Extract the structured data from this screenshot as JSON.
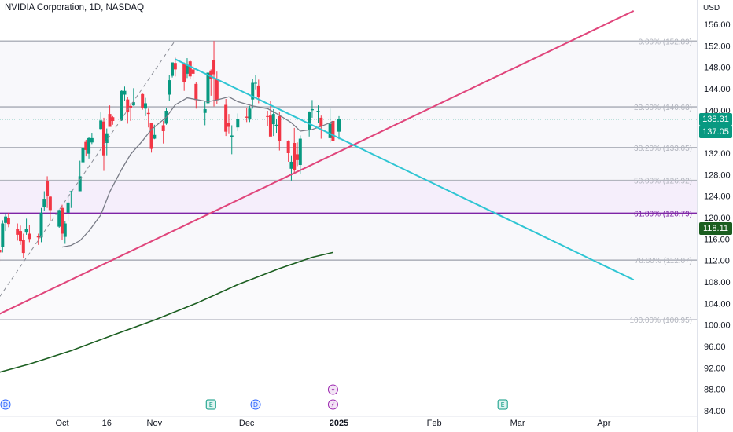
{
  "header": {
    "symbol_title": "NVIDIA Corporation, 1D, NASDAQ",
    "currency": "USD"
  },
  "colors": {
    "up": "#089981",
    "down": "#f23645",
    "pink_line": "#e0457b",
    "cyan_line": "#2ec5d3",
    "ma_fast": "#787b86",
    "ma_slow": "#1b5e20",
    "fib_line": "#b2b5be",
    "fib_61": "#7e25a6",
    "last_price_badge": "#089981",
    "ma_badge": "#1b5e20"
  },
  "price_badges": {
    "last": "138.31",
    "prev": "137.05",
    "ma": "118.11"
  },
  "events": [
    {
      "name": "dividend-icon",
      "label": "D",
      "date": "2024-09-12"
    },
    {
      "name": "earnings-icon",
      "label": "E",
      "date": "2024-11-20"
    },
    {
      "name": "dividend-icon",
      "label": "D",
      "date": "2024-12-05"
    },
    {
      "name": "split-icon",
      "label": "⚡",
      "date": "2024-12-31"
    },
    {
      "name": "split-icon",
      "label": "✦",
      "date": "2024-12-31"
    },
    {
      "name": "earnings-icon",
      "label": "E",
      "date": "2025-02-26"
    }
  ],
  "chart_data": {
    "type": "candlestick",
    "title": "NVIDIA Corporation, 1D, NASDAQ",
    "ylim": [
      84,
      158
    ],
    "y_ticks": [
      84,
      88,
      92,
      96,
      100,
      104,
      108,
      112,
      116,
      120,
      124,
      128,
      132,
      136,
      140,
      144,
      148,
      152,
      156
    ],
    "y_tick_labels": [
      "84.00",
      "88.00",
      "92.00",
      "96.00",
      "100.00",
      "104.00",
      "108.00",
      "112.00",
      "116.00",
      "120.00",
      "124.00",
      "128.00",
      "132.00",
      "136.00",
      "140.00",
      "144.00",
      "148.00",
      "152.00",
      "156.00"
    ],
    "x_tick_labels": [
      {
        "label": "Oct",
        "date": "2024-10-01"
      },
      {
        "label": "16",
        "date": "2024-10-16"
      },
      {
        "label": "Nov",
        "date": "2024-11-01"
      },
      {
        "label": "Dec",
        "date": "2024-12-02"
      },
      {
        "label": "2025",
        "date": "2025-01-02"
      },
      {
        "label": "Feb",
        "date": "2025-02-03"
      },
      {
        "label": "Mar",
        "date": "2025-03-03"
      },
      {
        "label": "Apr",
        "date": "2025-04-01"
      }
    ],
    "fibonacci": [
      {
        "label": "0.00% (152.89)",
        "price": 152.89
      },
      {
        "label": "23.60% (140.63)",
        "price": 140.63
      },
      {
        "label": "38.20% (133.05)",
        "price": 133.05
      },
      {
        "label": "50.00% (126.92)",
        "price": 126.92
      },
      {
        "label": "61.80% (120.79)",
        "price": 120.79
      },
      {
        "label": "78.60% (112.07)",
        "price": 112.07
      },
      {
        "label": "100.00% (100.95)",
        "price": 100.95
      }
    ],
    "trendlines": [
      {
        "name": "support-trendline",
        "points": [
          [
            "2024-09-06",
            101.0
          ],
          [
            "2025-04-11",
            158.5
          ]
        ]
      },
      {
        "name": "resistance-trendline",
        "points": [
          [
            "2024-11-08",
            149.5
          ],
          [
            "2025-04-11",
            108.4
          ]
        ]
      },
      {
        "name": "dashed-trendline",
        "points": [
          [
            "2024-09-06",
            102.0
          ],
          [
            "2024-11-08",
            153.0
          ]
        ]
      }
    ],
    "ma_fast": [
      [
        "2024-10-01",
        114.5
      ],
      [
        "2024-10-04",
        114.8
      ],
      [
        "2024-10-07",
        115.7
      ],
      [
        "2024-10-10",
        117.5
      ],
      [
        "2024-10-14",
        120.5
      ],
      [
        "2024-10-17",
        124.8
      ],
      [
        "2024-10-21",
        129.0
      ],
      [
        "2024-10-24",
        131.8
      ],
      [
        "2024-10-28",
        134.3
      ],
      [
        "2024-10-31",
        136.4
      ],
      [
        "2024-11-05",
        138.7
      ],
      [
        "2024-11-08",
        141.0
      ],
      [
        "2024-11-12",
        142.3
      ],
      [
        "2024-11-15",
        142.0
      ],
      [
        "2024-11-19",
        141.6
      ],
      [
        "2024-11-22",
        141.9
      ],
      [
        "2024-11-26",
        142.5
      ],
      [
        "2024-11-29",
        141.6
      ],
      [
        "2024-12-04",
        140.8
      ],
      [
        "2024-12-09",
        140.3
      ],
      [
        "2024-12-12",
        139.4
      ],
      [
        "2024-12-17",
        137.7
      ],
      [
        "2024-12-20",
        136.1
      ],
      [
        "2024-12-24",
        136.4
      ],
      [
        "2024-12-27",
        137.0
      ],
      [
        "2024-12-31",
        137.9
      ]
    ],
    "ma_slow": [
      [
        "2024-09-06",
        90.6
      ],
      [
        "2024-09-20",
        92.7
      ],
      [
        "2024-10-04",
        95.2
      ],
      [
        "2024-10-18",
        98.1
      ],
      [
        "2024-11-01",
        100.9
      ],
      [
        "2024-11-15",
        104.0
      ],
      [
        "2024-11-29",
        107.5
      ],
      [
        "2024-12-13",
        110.5
      ],
      [
        "2024-12-24",
        112.6
      ],
      [
        "2024-12-31",
        113.5
      ]
    ],
    "candles": [
      {
        "date": "2024-09-09",
        "open": 111.8,
        "high": 115.5,
        "low": 109.8,
        "close": 114.3
      },
      {
        "date": "2024-09-10",
        "open": 114.0,
        "high": 116.5,
        "low": 111.8,
        "close": 113.5
      },
      {
        "date": "2024-09-11",
        "open": 114.5,
        "high": 119.5,
        "low": 113.5,
        "close": 118.9
      },
      {
        "date": "2024-09-12",
        "open": 119.0,
        "high": 120.8,
        "low": 117.5,
        "close": 120.2
      },
      {
        "date": "2024-09-13",
        "open": 120.0,
        "high": 120.9,
        "low": 118.2,
        "close": 118.8
      },
      {
        "date": "2024-09-16",
        "open": 117.8,
        "high": 118.9,
        "low": 115.7,
        "close": 116.8
      },
      {
        "date": "2024-09-17",
        "open": 117.5,
        "high": 118.5,
        "low": 114.9,
        "close": 115.6
      },
      {
        "date": "2024-09-18",
        "open": 115.8,
        "high": 117.0,
        "low": 112.5,
        "close": 113.4
      },
      {
        "date": "2024-09-19",
        "open": 117.2,
        "high": 119.8,
        "low": 116.8,
        "close": 117.9
      },
      {
        "date": "2024-09-20",
        "open": 117.0,
        "high": 118.6,
        "low": 115.4,
        "close": 116.0
      },
      {
        "date": "2024-09-23",
        "open": 116.5,
        "high": 117.0,
        "low": 114.9,
        "close": 116.3
      },
      {
        "date": "2024-09-24",
        "open": 116.3,
        "high": 121.8,
        "low": 115.4,
        "close": 120.9
      },
      {
        "date": "2024-09-25",
        "open": 122.0,
        "high": 124.9,
        "low": 121.2,
        "close": 123.5
      },
      {
        "date": "2024-09-26",
        "open": 126.8,
        "high": 127.7,
        "low": 121.8,
        "close": 124.0
      },
      {
        "date": "2024-09-27",
        "open": 123.9,
        "high": 124.0,
        "low": 119.3,
        "close": 121.4
      },
      {
        "date": "2024-09-30",
        "open": 118.3,
        "high": 121.5,
        "low": 118.1,
        "close": 121.4
      },
      {
        "date": "2024-10-01",
        "open": 121.8,
        "high": 122.4,
        "low": 115.8,
        "close": 117.0
      },
      {
        "date": "2024-10-02",
        "open": 116.4,
        "high": 119.4,
        "low": 115.1,
        "close": 118.9
      },
      {
        "date": "2024-10-03",
        "open": 120.9,
        "high": 124.4,
        "low": 119.3,
        "close": 122.8
      },
      {
        "date": "2024-10-04",
        "open": 124.9,
        "high": 125.0,
        "low": 121.8,
        "close": 124.9
      },
      {
        "date": "2024-10-07",
        "open": 124.9,
        "high": 130.6,
        "low": 124.9,
        "close": 127.7
      },
      {
        "date": "2024-10-08",
        "open": 130.3,
        "high": 133.5,
        "low": 129.4,
        "close": 132.9
      },
      {
        "date": "2024-10-09",
        "open": 134.1,
        "high": 134.5,
        "low": 131.4,
        "close": 132.6
      },
      {
        "date": "2024-10-10",
        "open": 131.9,
        "high": 135.0,
        "low": 131.0,
        "close": 134.8
      },
      {
        "date": "2024-10-11",
        "open": 134.0,
        "high": 135.8,
        "low": 133.7,
        "close": 134.8
      },
      {
        "date": "2024-10-14",
        "open": 136.5,
        "high": 139.6,
        "low": 136.3,
        "close": 138.1
      },
      {
        "date": "2024-10-15",
        "open": 137.9,
        "high": 138.6,
        "low": 128.7,
        "close": 131.6
      },
      {
        "date": "2024-10-16",
        "open": 133.9,
        "high": 136.6,
        "low": 131.6,
        "close": 135.7
      },
      {
        "date": "2024-10-17",
        "open": 139.3,
        "high": 140.9,
        "low": 136.9,
        "close": 136.9
      },
      {
        "date": "2024-10-18",
        "open": 138.7,
        "high": 138.9,
        "low": 137.3,
        "close": 138.0
      },
      {
        "date": "2024-10-21",
        "open": 138.1,
        "high": 143.7,
        "low": 138.0,
        "close": 143.6
      },
      {
        "date": "2024-10-22",
        "open": 142.9,
        "high": 144.4,
        "low": 141.8,
        "close": 143.6
      },
      {
        "date": "2024-10-23",
        "open": 142.0,
        "high": 142.4,
        "low": 137.5,
        "close": 139.6
      },
      {
        "date": "2024-10-24",
        "open": 140.8,
        "high": 141.3,
        "low": 138.0,
        "close": 140.4
      },
      {
        "date": "2024-10-25",
        "open": 140.9,
        "high": 144.1,
        "low": 140.8,
        "close": 141.5
      },
      {
        "date": "2024-10-28",
        "open": 143.0,
        "high": 143.1,
        "low": 140.1,
        "close": 140.5
      },
      {
        "date": "2024-10-29",
        "open": 140.3,
        "high": 142.3,
        "low": 138.9,
        "close": 141.3
      },
      {
        "date": "2024-10-30",
        "open": 139.5,
        "high": 140.3,
        "low": 136.8,
        "close": 139.3
      },
      {
        "date": "2024-10-31",
        "open": 137.6,
        "high": 137.6,
        "low": 132.1,
        "close": 132.8
      },
      {
        "date": "2024-11-01",
        "open": 134.7,
        "high": 137.3,
        "low": 134.6,
        "close": 135.4
      },
      {
        "date": "2024-11-04",
        "open": 137.2,
        "high": 138.0,
        "low": 133.8,
        "close": 136.1
      },
      {
        "date": "2024-11-05",
        "open": 137.5,
        "high": 140.4,
        "low": 137.3,
        "close": 139.9
      },
      {
        "date": "2024-11-06",
        "open": 142.9,
        "high": 146.5,
        "low": 141.8,
        "close": 145.6
      },
      {
        "date": "2024-11-07",
        "open": 146.4,
        "high": 148.9,
        "low": 146.1,
        "close": 148.9
      },
      {
        "date": "2024-11-08",
        "open": 148.8,
        "high": 149.8,
        "low": 146.3,
        "close": 147.6
      },
      {
        "date": "2024-11-11",
        "open": 148.7,
        "high": 148.9,
        "low": 143.6,
        "close": 145.3
      },
      {
        "date": "2024-11-12",
        "open": 146.8,
        "high": 149.7,
        "low": 146.0,
        "close": 148.3
      },
      {
        "date": "2024-11-13",
        "open": 149.1,
        "high": 149.3,
        "low": 145.9,
        "close": 146.3
      },
      {
        "date": "2024-11-14",
        "open": 147.6,
        "high": 149.0,
        "low": 145.5,
        "close": 146.8
      },
      {
        "date": "2024-11-15",
        "open": 144.9,
        "high": 145.2,
        "low": 140.3,
        "close": 141.9
      },
      {
        "date": "2024-11-18",
        "open": 139.5,
        "high": 141.6,
        "low": 137.2,
        "close": 140.2
      },
      {
        "date": "2024-11-19",
        "open": 141.3,
        "high": 147.1,
        "low": 140.9,
        "close": 147.0
      },
      {
        "date": "2024-11-20",
        "open": 147.4,
        "high": 147.6,
        "low": 142.7,
        "close": 145.9
      },
      {
        "date": "2024-11-21",
        "open": 149.4,
        "high": 152.9,
        "low": 140.7,
        "close": 146.7
      },
      {
        "date": "2024-11-22",
        "open": 145.9,
        "high": 147.2,
        "low": 141.1,
        "close": 141.9
      },
      {
        "date": "2024-11-25",
        "open": 141.0,
        "high": 142.1,
        "low": 135.2,
        "close": 136.0
      },
      {
        "date": "2024-11-26",
        "open": 137.7,
        "high": 139.3,
        "low": 135.7,
        "close": 136.9
      },
      {
        "date": "2024-11-27",
        "open": 135.0,
        "high": 137.2,
        "low": 131.8,
        "close": 135.3
      },
      {
        "date": "2024-11-29",
        "open": 136.8,
        "high": 139.4,
        "low": 136.1,
        "close": 138.3
      },
      {
        "date": "2024-12-02",
        "open": 138.8,
        "high": 140.5,
        "low": 137.8,
        "close": 138.6
      },
      {
        "date": "2024-12-03",
        "open": 138.3,
        "high": 140.8,
        "low": 137.8,
        "close": 140.3
      },
      {
        "date": "2024-12-04",
        "open": 142.0,
        "high": 145.8,
        "low": 140.3,
        "close": 145.1
      },
      {
        "date": "2024-12-05",
        "open": 145.1,
        "high": 146.5,
        "low": 143.9,
        "close": 145.1
      },
      {
        "date": "2024-12-06",
        "open": 144.6,
        "high": 145.7,
        "low": 141.3,
        "close": 142.4
      },
      {
        "date": "2024-12-09",
        "open": 138.9,
        "high": 139.9,
        "low": 137.1,
        "close": 138.8
      },
      {
        "date": "2024-12-10",
        "open": 139.0,
        "high": 141.8,
        "low": 135.2,
        "close": 135.1
      },
      {
        "date": "2024-12-11",
        "open": 137.4,
        "high": 140.2,
        "low": 135.2,
        "close": 139.3
      },
      {
        "date": "2024-12-12",
        "open": 137.1,
        "high": 138.4,
        "low": 135.8,
        "close": 137.3
      },
      {
        "date": "2024-12-13",
        "open": 138.9,
        "high": 139.6,
        "low": 132.5,
        "close": 134.3
      },
      {
        "date": "2024-12-16",
        "open": 134.2,
        "high": 134.4,
        "low": 130.4,
        "close": 132.0
      },
      {
        "date": "2024-12-17",
        "open": 129.1,
        "high": 131.6,
        "low": 126.9,
        "close": 130.4
      },
      {
        "date": "2024-12-18",
        "open": 133.9,
        "high": 136.7,
        "low": 128.3,
        "close": 128.9
      },
      {
        "date": "2024-12-19",
        "open": 131.8,
        "high": 134.0,
        "low": 129.6,
        "close": 130.7
      },
      {
        "date": "2024-12-20",
        "open": 129.8,
        "high": 135.3,
        "low": 128.2,
        "close": 134.7
      },
      {
        "date": "2024-12-23",
        "open": 136.3,
        "high": 139.8,
        "low": 135.1,
        "close": 139.7
      },
      {
        "date": "2024-12-24",
        "open": 140.0,
        "high": 141.9,
        "low": 138.6,
        "close": 140.2
      },
      {
        "date": "2024-12-26",
        "open": 139.7,
        "high": 140.9,
        "low": 137.7,
        "close": 139.9
      },
      {
        "date": "2024-12-27",
        "open": 138.6,
        "high": 139.0,
        "low": 134.7,
        "close": 137.0
      },
      {
        "date": "2024-12-30",
        "open": 134.8,
        "high": 140.3,
        "low": 134.0,
        "close": 137.5
      },
      {
        "date": "2024-12-31",
        "open": 138.0,
        "high": 138.1,
        "low": 134.6,
        "close": 134.3
      },
      {
        "date": "2025-01-02",
        "open": 136.0,
        "high": 138.9,
        "low": 134.6,
        "close": 138.3
      }
    ]
  }
}
